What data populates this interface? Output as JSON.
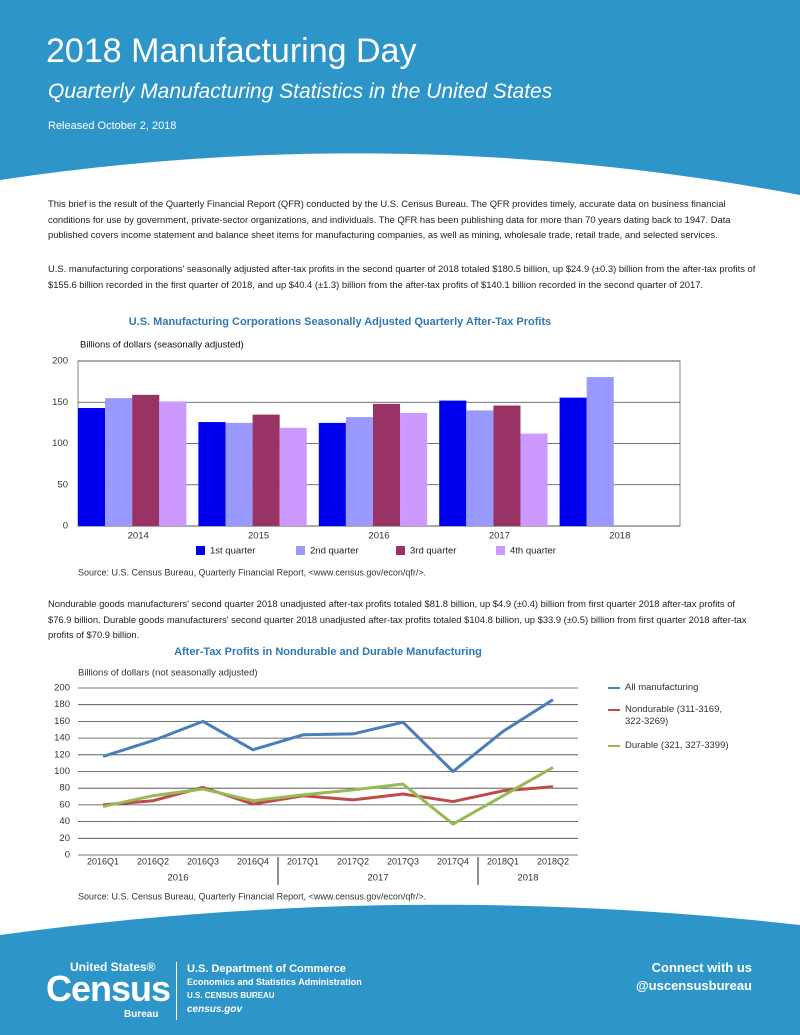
{
  "header": {
    "title": "2018 Manufacturing Day",
    "subtitle": "Quarterly Manufacturing Statistics in the United States",
    "released": "Released October 2, 2018"
  },
  "paragraphs": [
    "This brief is the result of the Quarterly Financial Report (QFR) conducted by the U.S. Census Bureau. The QFR provides timely, accurate data on business financial conditions for use by government, private-sector organizations, and individuals. The QFR has been publishing data for more than 70 years dating back to 1947. Data published covers income statement and balance sheet items for manufacturing companies, as well as mining, wholesale trade, retail trade, and selected services.",
    "U.S. manufacturing corporations' seasonally adjusted after-tax profits in the second quarter of 2018 totaled $180.5 billion, up $24.9 (±0.3) billion from the after-tax profits of $155.6 billion recorded in the first quarter of 2018, and up $40.4 (±1.3) billion from the after-tax profits of $140.1 billion recorded in the second quarter of 2017.",
    "Nondurable goods manufacturers' second quarter 2018 unadjusted after-tax profits totaled $81.8 billion, up $4.9 (±0.4) billion from first quarter 2018 after-tax profits of $76.9 billion. Durable goods manufacturers' second quarter 2018 unadjusted after-tax profits totaled $104.8 billion, up $33.9 (±0.5) billion from first quarter 2018 after-tax profits of $70.9 billion."
  ],
  "chart_data": [
    {
      "type": "bar",
      "title": "U.S. Manufacturing Corporations Seasonally Adjusted Quarterly After-Tax Profits",
      "y_label": "Billions of dollars (seasonally adjusted)",
      "categories": [
        "2014",
        "2015",
        "2016",
        "2017",
        "2018"
      ],
      "series": [
        {
          "name": "1st quarter",
          "color": "#0000ee",
          "values": [
            143,
            126,
            125,
            152,
            155.6
          ]
        },
        {
          "name": "2nd quarter",
          "color": "#9999ff",
          "values": [
            155,
            125,
            132,
            140.1,
            180.5
          ]
        },
        {
          "name": "3rd quarter",
          "color": "#993366",
          "values": [
            159,
            135,
            148,
            146,
            null
          ]
        },
        {
          "name": "4th quarter",
          "color": "#cc99ff",
          "values": [
            151,
            119,
            137,
            112,
            null
          ]
        }
      ],
      "ylim": [
        0,
        200
      ],
      "yticks": [
        0,
        50,
        100,
        150,
        200
      ],
      "grid": true,
      "source": "Source: U.S. Census Bureau, Quarterly Financial Report, <www.census.gov/econ/qfr/>."
    },
    {
      "type": "line",
      "title": "After-Tax Profits in Nondurable and Durable Manufacturing",
      "y_label": "Billions of dollars (not seasonally adjusted)",
      "categories": [
        "2016Q1",
        "2016Q2",
        "2016Q3",
        "2016Q4",
        "2017Q1",
        "2017Q2",
        "2017Q3",
        "2017Q4",
        "2018Q1",
        "2018Q2"
      ],
      "groups": [
        "2016",
        "2017",
        "2018"
      ],
      "series": [
        {
          "name": "All manufacturing",
          "color": "#4a7ebb",
          "values": [
            118,
            137,
            160,
            126,
            144,
            145,
            159,
            100,
            148,
            186
          ]
        },
        {
          "name": "Nondurable (311-3169, 322-3269)",
          "color": "#be4b48",
          "values": [
            60,
            65,
            81,
            61,
            71,
            66,
            73,
            64,
            76.9,
            81.8
          ]
        },
        {
          "name": "Durable (321, 327-3399)",
          "color": "#98b954",
          "values": [
            58,
            71,
            79,
            65,
            72,
            78,
            85,
            37,
            70.9,
            104.8
          ]
        }
      ],
      "ylim": [
        0,
        200
      ],
      "yticks": [
        0,
        20,
        40,
        60,
        80,
        100,
        120,
        140,
        160,
        180,
        200
      ],
      "grid": true,
      "source": "Source: U.S. Census Bureau, Quarterly Financial Report, <www.census.gov/econ/qfr/>."
    }
  ],
  "footer": {
    "logo_top": "United States®",
    "logo_main": "Census",
    "logo_bottom": "Bureau",
    "dept": "U.S. Department of Commerce",
    "esa": "Economics and Statistics Administration",
    "bureau": "U.S. CENSUS BUREAU",
    "site": "census.gov",
    "connect": "Connect with us",
    "handle": "@uscensusbureau"
  }
}
